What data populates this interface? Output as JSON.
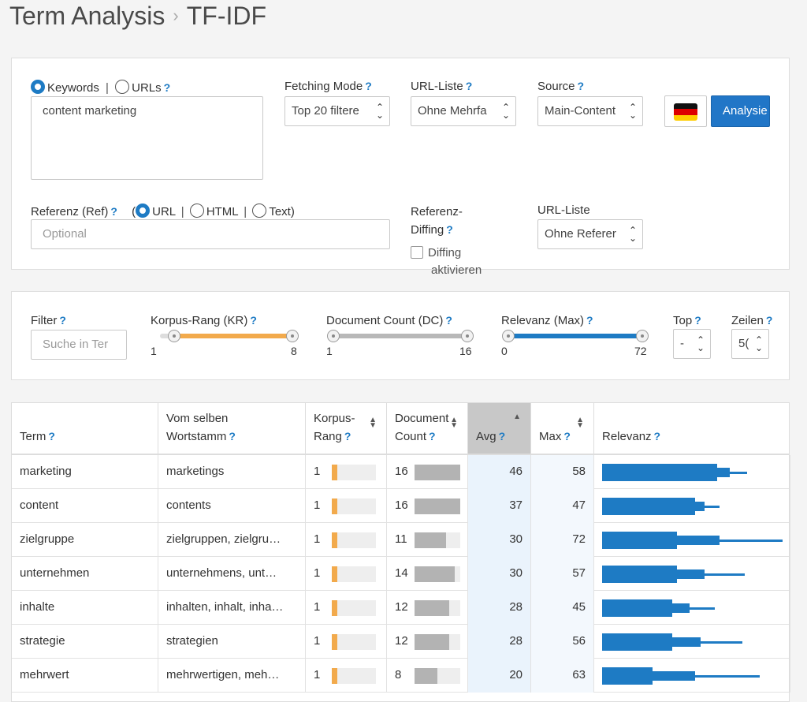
{
  "header": {
    "title": "Term Analysis",
    "separator": "›",
    "subtitle": "TF-IDF"
  },
  "form": {
    "mode_keywords": "Keywords",
    "mode_sep": "|",
    "mode_urls": "URLs",
    "help": "?",
    "query_value": "content marketing",
    "fetching_label": "Fetching Mode",
    "fetching_value": "Top 20 filtere",
    "urlliste_label": "URL-Liste",
    "urlliste_value": "Ohne Mehrfa",
    "source_label": "Source",
    "source_value": "Main-Content",
    "analyze_label": "Analysie",
    "ref_label": "Referenz (Ref)",
    "ref_paren": "(",
    "ref_url": "URL",
    "ref_html": "HTML",
    "ref_text": "Text)",
    "ref_placeholder": "Optional",
    "diff_label_1": "Referenz-",
    "diff_label_2": "Diffing",
    "diff_check_1": "Diffing",
    "diff_check_2": "aktivieren",
    "urlliste2_label": "URL-Liste",
    "urlliste2_value": "Ohne Referer"
  },
  "filters": {
    "filter_label": "Filter",
    "filter_placeholder": "Suche in Ter",
    "kr_label": "Korpus-Rang (KR)",
    "kr_min": "1",
    "kr_max": "8",
    "dc_label": "Document Count (DC)",
    "dc_min": "1",
    "dc_max": "16",
    "rel_label": "Relevanz (Max)",
    "rel_min": "0",
    "rel_max": "72",
    "top_label": "Top",
    "top_value": "-",
    "zeilen_label": "Zeilen",
    "zeilen_value": "5("
  },
  "colors": {
    "accent": "#1e7bc4",
    "kr_bar": "#f2aa4c",
    "dc_bar": "#b3b3b3"
  },
  "table": {
    "headers": {
      "term": "Term",
      "stamm_1": "Vom selben",
      "stamm_2": "Wortstamm",
      "kr_1": "Korpus-",
      "kr_2": "Rang",
      "dc_1": "Document",
      "dc_2": "Count",
      "avg": "Avg",
      "max": "Max",
      "rel": "Relevanz"
    },
    "rows": [
      {
        "term": "marketing",
        "stamm": "marketings",
        "kr": "1",
        "dc": "16",
        "dc_frac": 1.0,
        "avg": "46",
        "max": "58"
      },
      {
        "term": "content",
        "stamm": "contents",
        "kr": "1",
        "dc": "16",
        "dc_frac": 1.0,
        "avg": "37",
        "max": "47"
      },
      {
        "term": "zielgruppe",
        "stamm": "zielgruppen, zielgru…",
        "kr": "1",
        "dc": "11",
        "dc_frac": 0.69,
        "avg": "30",
        "max": "72"
      },
      {
        "term": "unternehmen",
        "stamm": "unternehmens, unt…",
        "kr": "1",
        "dc": "14",
        "dc_frac": 0.88,
        "avg": "30",
        "max": "57"
      },
      {
        "term": "inhalte",
        "stamm": "inhalten, inhalt, inha…",
        "kr": "1",
        "dc": "12",
        "dc_frac": 0.75,
        "avg": "28",
        "max": "45"
      },
      {
        "term": "strategie",
        "stamm": "strategien",
        "kr": "1",
        "dc": "12",
        "dc_frac": 0.75,
        "avg": "28",
        "max": "56"
      },
      {
        "term": "mehrwert",
        "stamm": "mehrwertigen, meh…",
        "kr": "1",
        "dc": "8",
        "dc_frac": 0.5,
        "avg": "20",
        "max": "63"
      }
    ]
  }
}
